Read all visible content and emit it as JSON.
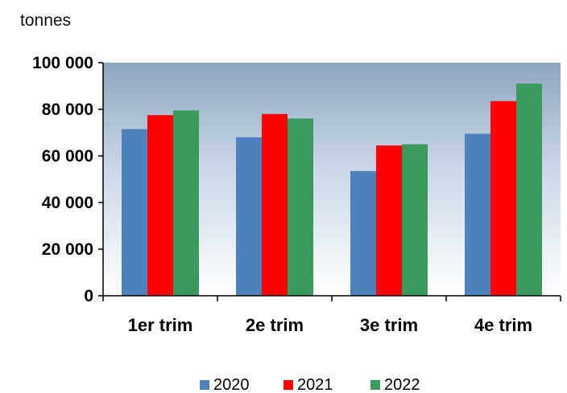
{
  "chart_data": {
    "type": "bar",
    "ylabel": "tonnes",
    "categories": [
      "1er trim",
      "2e trim",
      "3e trim",
      "4e trim"
    ],
    "series": [
      {
        "name": "2020",
        "color": "#4f81bd",
        "values": [
          71500,
          68000,
          53500,
          69500
        ]
      },
      {
        "name": "2021",
        "color": "#ff0000",
        "values": [
          77500,
          78000,
          64500,
          83500
        ]
      },
      {
        "name": "2022",
        "color": "#3a9a5e",
        "values": [
          79500,
          76000,
          65000,
          91000
        ]
      }
    ],
    "ylim": [
      0,
      100000
    ],
    "yticks": [
      0,
      20000,
      40000,
      60000,
      80000,
      100000
    ],
    "ytick_labels": [
      "0",
      "20 000",
      "40 000",
      "60 000",
      "80 000",
      "100 000"
    ],
    "grid": false,
    "legend": "bottom",
    "background": "gradient-blue-to-white"
  }
}
